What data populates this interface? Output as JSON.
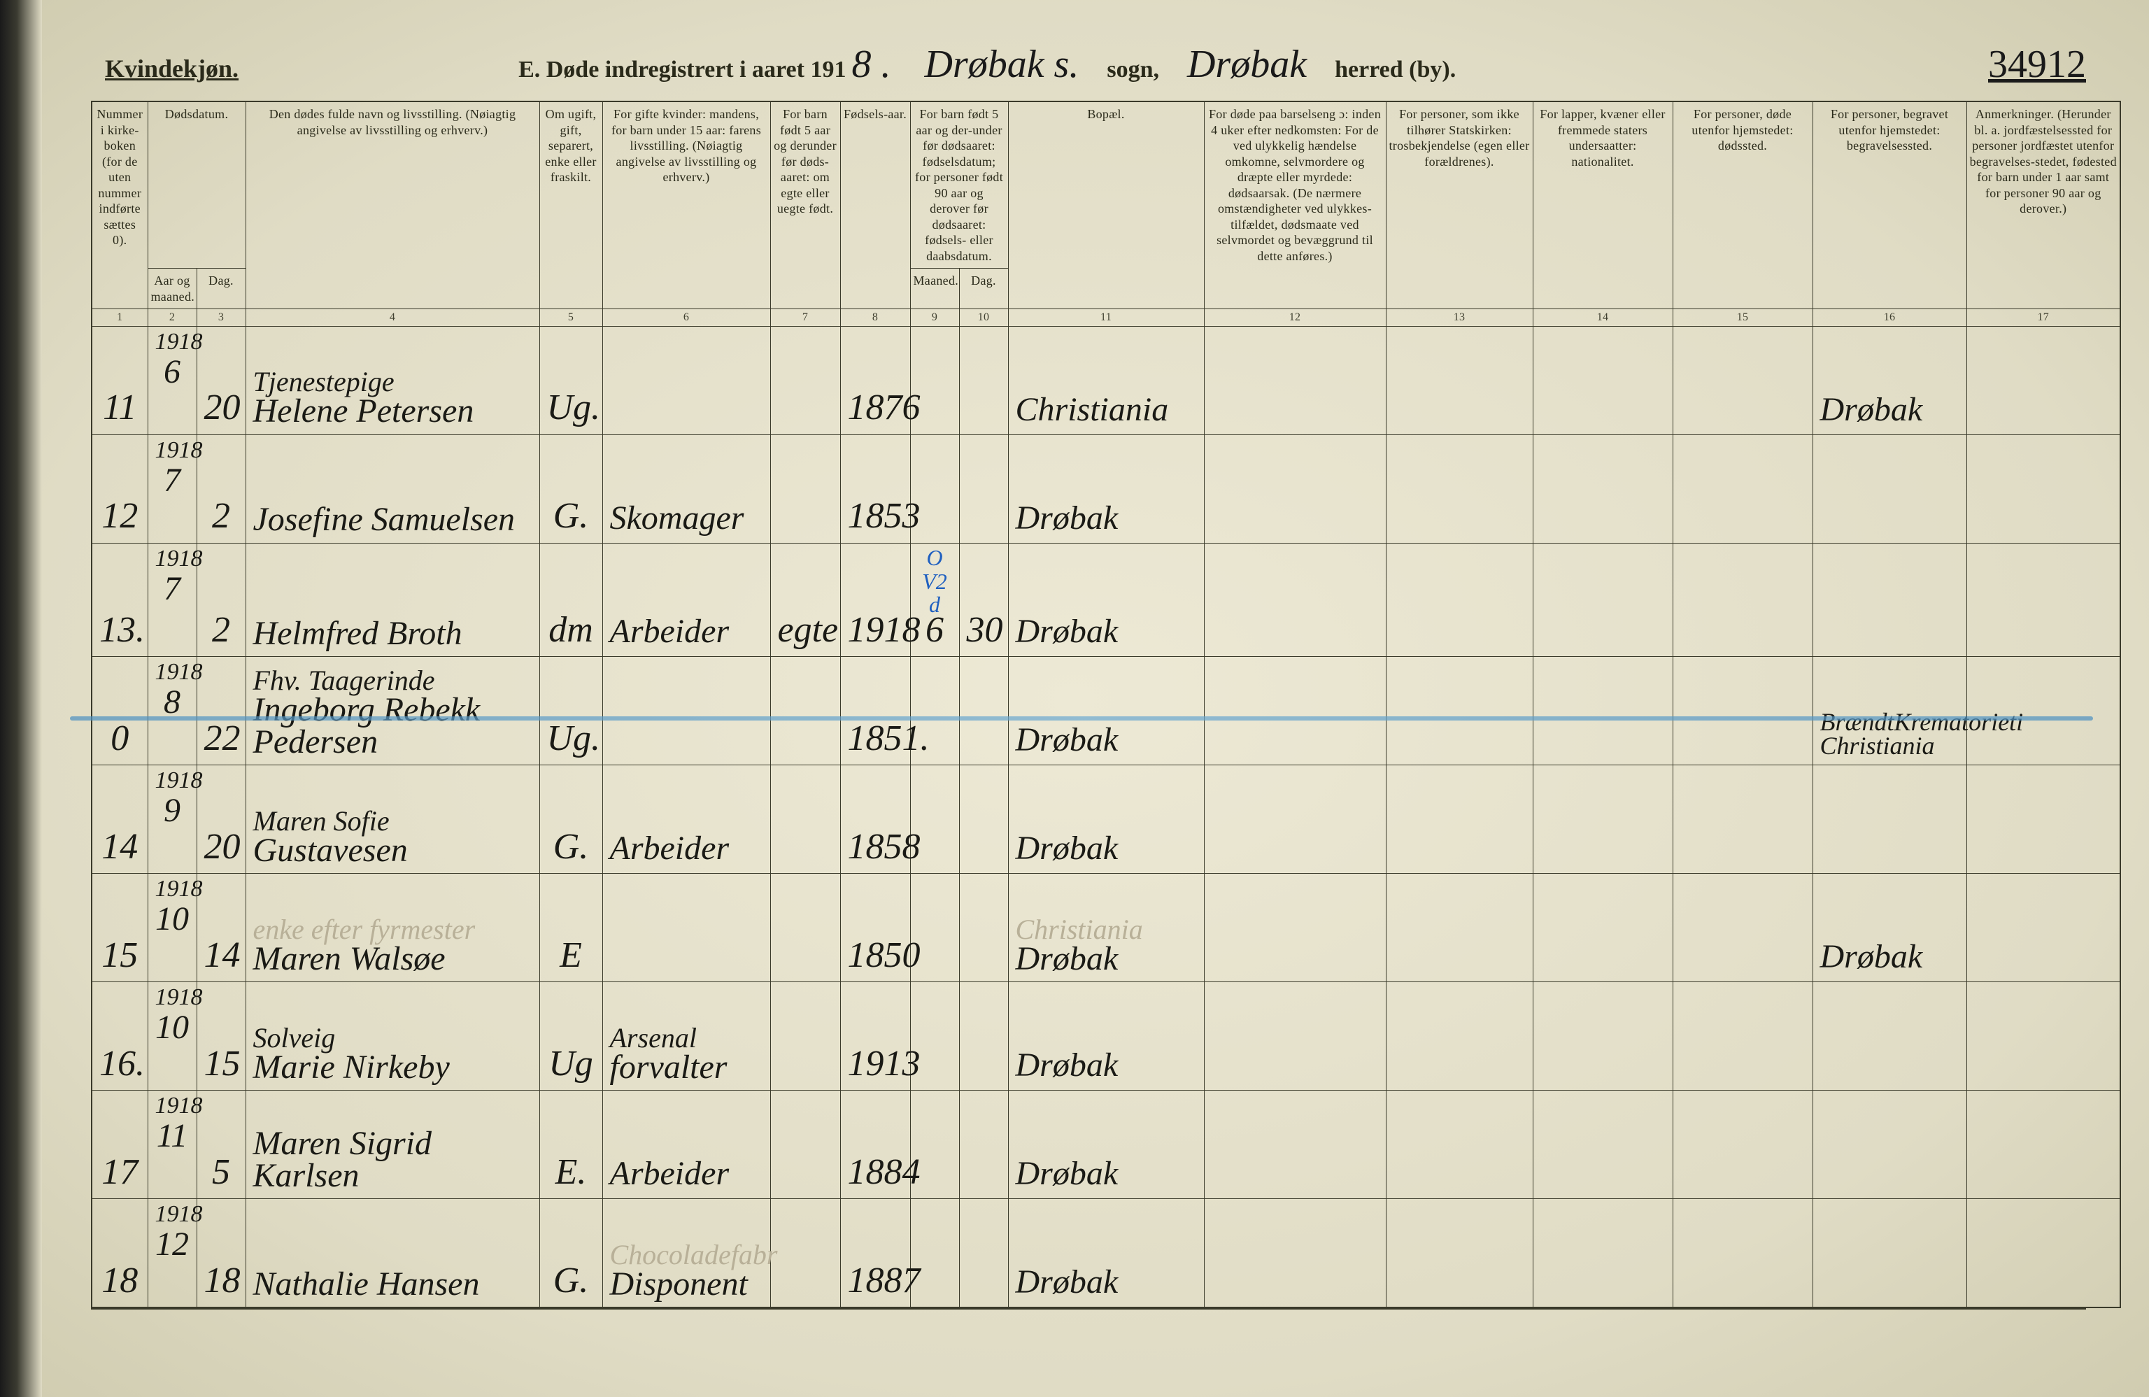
{
  "page": {
    "gender_heading": "Kvindekjøn.",
    "title_prefix": "E.  Døde indregistrert i aaret 191",
    "year_suffix": "8 .",
    "sogn_script": "Drøbak s.",
    "sogn_label": "sogn,",
    "herred_script": "Drøbak",
    "herred_label": "herred (by).",
    "page_number": "34912"
  },
  "columns": {
    "c1": "Nummer i kirke-boken (for de uten nummer indførte sættes 0).",
    "c2": "Dødsdatum.",
    "c2a": "Aar og maaned.",
    "c2b": "Dag.",
    "c4": "Den dødes fulde navn og livsstilling.\n(Nøiagtig angivelse av livsstilling og erhverv.)",
    "c5": "Om ugift, gift, separert, enke eller fraskilt.",
    "c6": "For gifte kvinder:\nmandens,\nfor barn under 15 aar:\nfarens livsstilling.\n(Nøiagtig angivelse av livsstilling og erhverv.)",
    "c7": "For barn født 5 aar og derunder før døds-aaret: om egte eller uegte født.",
    "c8": "Fødsels-aar.",
    "c9_10": "For barn født 5 aar og der-under før dødsaaret: fødselsdatum; for personer født 90 aar og derover før dødsaaret: fødsels- eller daabsdatum.",
    "c9": "Maaned.",
    "c10": "Dag.",
    "c11": "Bopæl.",
    "c12": "For døde paa barselseng ɔ: inden 4 uker efter nedkomsten: For de ved ulykkelig hændelse omkomne, selvmordere og dræpte eller myrdede: dødsaarsak. (De nærmere omstændigheter ved ulykkes-tilfældet, dødsmaate ved selvmordet og bevæggrund til dette anføres.)",
    "c13": "For personer, som ikke tilhører Statskirken: trosbekjendelse (egen eller forældrenes).",
    "c14": "For lapper, kvæner eller fremmede staters undersaatter: nationalitet.",
    "c15": "For personer, døde utenfor hjemstedet: dødssted.",
    "c16": "For personer, begravet utenfor hjemstedet: begravelsessted.",
    "c17": "Anmerkninger. (Herunder bl. a. jordfæstelsessted for personer jordfæstet utenfor begravelses-stedet, fødested for barn under 1 aar samt for personer 90 aar og derover.)"
  },
  "colnums": [
    "1",
    "2",
    "3",
    "4",
    "5",
    "6",
    "7",
    "8",
    "9",
    "10",
    "11",
    "12",
    "13",
    "14",
    "15",
    "16",
    "17"
  ],
  "rows": [
    {
      "no": "11",
      "year": "1918",
      "mon": "6",
      "day": "20",
      "name_l1": "Tjenestepige",
      "name_l2": "Helene Petersen",
      "status": "Ug.",
      "occ": "",
      "birth": "1876",
      "bopael": "Christiania",
      "c16": "Drøbak"
    },
    {
      "no": "12",
      "year": "1918",
      "mon": "7",
      "day": "2",
      "name_l1": "",
      "name_l2": "Josefine Samuelsen",
      "status": "G.",
      "occ": "Skomager",
      "birth": "1853",
      "bopael": "Drøbak",
      "c16": ""
    },
    {
      "no": "13.",
      "year": "1918",
      "mon": "7",
      "day": "2",
      "name_l1": "",
      "name_l2": "Helmfred Broth",
      "status": "dm",
      "occ": "Arbeider",
      "c7": "egte",
      "birth": "1918",
      "c9_annot": "O V2 d",
      "c9": "6",
      "c10": "30",
      "bopael": "Drøbak",
      "c16": ""
    },
    {
      "no": "0",
      "year": "1918",
      "mon": "8",
      "day": "22",
      "name_l1": "Fhv. Taagerinde",
      "name_l2": "Ingeborg Rebekk Pedersen",
      "status": "Ug.",
      "occ": "",
      "birth": "1851.",
      "bopael": "Drøbak",
      "c16_l1": "Brændt",
      "c16_l2": "Krematoriet",
      "c16_l3": "i Christiania",
      "struck": true
    },
    {
      "no": "14",
      "year": "1918",
      "mon": "9",
      "day": "20",
      "name_l1": "Maren Sofie",
      "name_l2": "Gustavesen",
      "status": "G.",
      "occ": "Arbeider",
      "birth": "1858",
      "bopael": "Drøbak",
      "c16": ""
    },
    {
      "no": "15",
      "year": "1918",
      "mon": "10",
      "day": "14",
      "name_l1": "enke efter fyrmester",
      "name_l1_faded": true,
      "name_l2": "Maren Walsøe",
      "status": "E",
      "occ": "",
      "birth": "1850",
      "bopael_l1": "Christiania",
      "bopael_l1_faded": true,
      "bopael_l2": "Drøbak",
      "c16": "Drøbak"
    },
    {
      "no": "16.",
      "year": "1918",
      "mon": "10",
      "day": "15",
      "name_l1": "Solveig",
      "name_l2": "Marie Nirkeby",
      "status": "Ug",
      "occ_l1": "Arsenal",
      "occ_l2": "forvalter",
      "birth": "1913",
      "bopael": "Drøbak",
      "c16": ""
    },
    {
      "no": "17",
      "year": "1918",
      "mon": "11",
      "day": "5",
      "name_l1": "",
      "name_l2": "Maren Sigrid Karlsen",
      "status": "E.",
      "occ": "Arbeider",
      "birth": "1884",
      "bopael": "Drøbak",
      "c16": ""
    },
    {
      "no": "18",
      "year": "1918",
      "mon": "12",
      "day": "18",
      "name_l1": "",
      "name_l2": "Nathalie Hansen",
      "status": "G.",
      "occ_l1": "Chocoladefabr",
      "occ_l1_faded": true,
      "occ_l2": "Disponent",
      "birth": "1887",
      "bopael": "Drøbak",
      "c16": ""
    }
  ],
  "colwidths": {
    "c1": 80,
    "c2a": 70,
    "c2b": 70,
    "c4": 420,
    "c5": 90,
    "c6": 240,
    "c7": 100,
    "c8": 100,
    "c9": 70,
    "c10": 70,
    "c11": 280,
    "c12": 260,
    "c13": 210,
    "c14": 200,
    "c15": 200,
    "c16": 220,
    "c17": 220
  },
  "colors": {
    "paper": "#e8e4d0",
    "ink": "#1a1a15",
    "print": "#2a2a1a",
    "blue_pencil": "#4a8fc0",
    "faded_pencil": "#b8b098"
  }
}
